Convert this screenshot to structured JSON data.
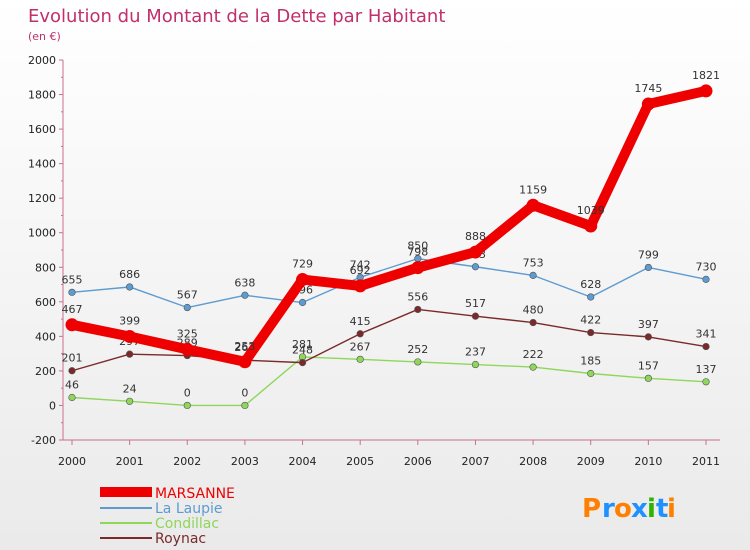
{
  "chart_data": {
    "type": "line",
    "title": "Evolution du Montant de la Dette par Habitant",
    "subtitle": "(en €)",
    "x": [
      "2000",
      "2001",
      "2002",
      "2003",
      "2004",
      "2005",
      "2006",
      "2007",
      "2008",
      "2009",
      "2010",
      "2011"
    ],
    "y_ticks": [
      "-200",
      "0",
      "200",
      "400",
      "600",
      "800",
      "1000",
      "1200",
      "1400",
      "1600",
      "1800",
      "2000"
    ],
    "ylim": [
      -200,
      2000
    ],
    "grid": false,
    "legend_position": "bottom-left",
    "series": [
      {
        "name": "La Laupie",
        "color": "#5d9bd0",
        "width": "thin",
        "values": [
          655,
          686,
          567,
          638,
          596,
          742,
          850,
          803,
          753,
          628,
          799,
          730
        ],
        "labels": [
          "655",
          "686",
          "567",
          "638",
          "596",
          "742",
          "850",
          "803",
          "753",
          "628",
          "799",
          "730"
        ]
      },
      {
        "name": "Condillac",
        "color": "#8fd65a",
        "width": "thin",
        "values": [
          46,
          24,
          0,
          0,
          281,
          267,
          252,
          237,
          222,
          185,
          157,
          137
        ],
        "labels": [
          "46",
          "24",
          "0",
          "0",
          "281",
          "267",
          "252",
          "237",
          "222",
          "185",
          "157",
          "137"
        ]
      },
      {
        "name": "Roynac",
        "color": "#7a2a2a",
        "width": "thin",
        "values": [
          201,
          297,
          289,
          262,
          248,
          415,
          556,
          517,
          480,
          422,
          397,
          341
        ],
        "labels": [
          "201",
          "297",
          "289",
          "262",
          "248",
          "415",
          "556",
          "517",
          "480",
          "422",
          "397",
          "341"
        ]
      },
      {
        "name": "MARSANNE",
        "color": "#ee0000",
        "width": "thick",
        "values": [
          467,
          399,
          325,
          253,
          729,
          692,
          798,
          888,
          1159,
          1039,
          1745,
          1821
        ],
        "labels": [
          "467",
          "399",
          "325",
          "253",
          "729",
          "692",
          "798",
          "888",
          "1159",
          "1039",
          "1745",
          "1821"
        ]
      }
    ]
  },
  "legend": [
    {
      "name": "MARSANNE",
      "color": "#ee0000"
    },
    {
      "name": "La Laupie",
      "color": "#5d9bd0"
    },
    {
      "name": "Condillac",
      "color": "#8fd65a"
    },
    {
      "name": "Roynac",
      "color": "#7a2a2a"
    }
  ],
  "logo": {
    "text": "Proxiti",
    "colors": [
      "#ff7f00",
      "#1e90ff",
      "#ff7f00",
      "#1e90ff",
      "#2db300",
      "#1e90ff",
      "#ff7f00"
    ]
  }
}
